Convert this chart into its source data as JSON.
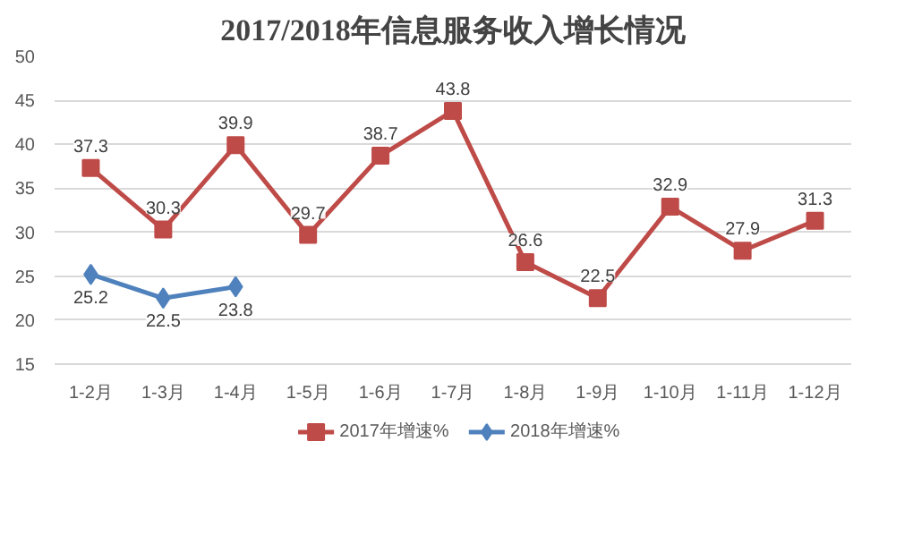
{
  "chart_data": {
    "type": "line",
    "title": "2017/2018年信息服务收入增长情况",
    "categories": [
      "1-2月",
      "1-3月",
      "1-4月",
      "1-5月",
      "1-6月",
      "1-7月",
      "1-8月",
      "1-9月",
      "1-10月",
      "1-11月",
      "1-12月"
    ],
    "series": [
      {
        "name": "2017年增速%",
        "color": "#be4b48",
        "marker": "square",
        "values": [
          37.3,
          30.3,
          39.9,
          29.7,
          38.7,
          43.8,
          26.6,
          22.5,
          32.9,
          27.9,
          31.3
        ]
      },
      {
        "name": "2018年增速%",
        "color": "#4f81bd",
        "marker": "diamond",
        "values": [
          25.2,
          22.5,
          23.8,
          null,
          null,
          null,
          null,
          null,
          null,
          null,
          null
        ]
      }
    ],
    "ylim": [
      15,
      50
    ],
    "yticks": [
      15,
      20,
      25,
      30,
      35,
      40,
      45,
      50
    ],
    "grid": "y",
    "legend": "bottom",
    "data_labels": true,
    "line_style": "solid"
  }
}
